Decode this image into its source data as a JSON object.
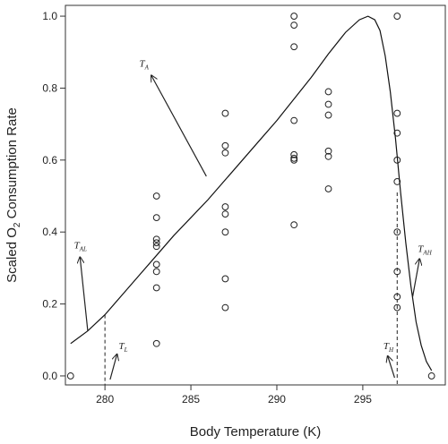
{
  "chart_data": {
    "type": "scatter",
    "xlabel": "Body Temperature (K)",
    "ylabel_main": "Scaled O",
    "ylabel_sub": "2",
    "ylabel_rest": " Consumption Rate",
    "xlim": [
      277.7,
      299.8
    ],
    "ylim": [
      -0.025,
      1.03
    ],
    "x_ticks": [
      280,
      285,
      290,
      295
    ],
    "x_tick_labels": [
      "280",
      "285",
      "290",
      "295"
    ],
    "y_ticks": [
      0.0,
      0.2,
      0.4,
      0.6,
      0.8,
      1.0
    ],
    "y_tick_labels": [
      "0.0",
      "0.2",
      "0.4",
      "0.6",
      "0.8",
      "1.0"
    ],
    "grid": false,
    "points": [
      {
        "x": 278,
        "y": 0.0
      },
      {
        "x": 283,
        "y": 0.5
      },
      {
        "x": 283,
        "y": 0.44
      },
      {
        "x": 283,
        "y": 0.38
      },
      {
        "x": 283,
        "y": 0.37
      },
      {
        "x": 283,
        "y": 0.36
      },
      {
        "x": 283,
        "y": 0.31
      },
      {
        "x": 283,
        "y": 0.29
      },
      {
        "x": 283,
        "y": 0.245
      },
      {
        "x": 283,
        "y": 0.09
      },
      {
        "x": 287,
        "y": 0.73
      },
      {
        "x": 287,
        "y": 0.64
      },
      {
        "x": 287,
        "y": 0.62
      },
      {
        "x": 287,
        "y": 0.47
      },
      {
        "x": 287,
        "y": 0.45
      },
      {
        "x": 287,
        "y": 0.4
      },
      {
        "x": 287,
        "y": 0.27
      },
      {
        "x": 287,
        "y": 0.19
      },
      {
        "x": 291,
        "y": 1.0
      },
      {
        "x": 291,
        "y": 0.975
      },
      {
        "x": 291,
        "y": 0.915
      },
      {
        "x": 291,
        "y": 0.71
      },
      {
        "x": 291,
        "y": 0.615
      },
      {
        "x": 291,
        "y": 0.605
      },
      {
        "x": 291,
        "y": 0.6
      },
      {
        "x": 291,
        "y": 0.42
      },
      {
        "x": 293,
        "y": 0.79
      },
      {
        "x": 293,
        "y": 0.755
      },
      {
        "x": 293,
        "y": 0.725
      },
      {
        "x": 293,
        "y": 0.625
      },
      {
        "x": 293,
        "y": 0.61
      },
      {
        "x": 293,
        "y": 0.52
      },
      {
        "x": 297,
        "y": 1.0
      },
      {
        "x": 297,
        "y": 0.73
      },
      {
        "x": 297,
        "y": 0.675
      },
      {
        "x": 297,
        "y": 0.6
      },
      {
        "x": 297,
        "y": 0.54
      },
      {
        "x": 297,
        "y": 0.4
      },
      {
        "x": 297,
        "y": 0.29
      },
      {
        "x": 297,
        "y": 0.22
      },
      {
        "x": 297,
        "y": 0.19
      },
      {
        "x": 299,
        "y": 0.0
      }
    ],
    "curve": [
      {
        "x": 278.0,
        "y": 0.09
      },
      {
        "x": 279.0,
        "y": 0.125
      },
      {
        "x": 280.0,
        "y": 0.17
      },
      {
        "x": 281.0,
        "y": 0.225
      },
      {
        "x": 282.0,
        "y": 0.28
      },
      {
        "x": 283.0,
        "y": 0.335
      },
      {
        "x": 284.0,
        "y": 0.39
      },
      {
        "x": 285.0,
        "y": 0.44
      },
      {
        "x": 286.0,
        "y": 0.49
      },
      {
        "x": 287.0,
        "y": 0.545
      },
      {
        "x": 288.0,
        "y": 0.6
      },
      {
        "x": 289.0,
        "y": 0.655
      },
      {
        "x": 290.0,
        "y": 0.71
      },
      {
        "x": 291.0,
        "y": 0.77
      },
      {
        "x": 292.0,
        "y": 0.83
      },
      {
        "x": 293.0,
        "y": 0.895
      },
      {
        "x": 294.0,
        "y": 0.955
      },
      {
        "x": 294.8,
        "y": 0.99
      },
      {
        "x": 295.3,
        "y": 1.0
      },
      {
        "x": 295.7,
        "y": 0.99
      },
      {
        "x": 296.0,
        "y": 0.96
      },
      {
        "x": 296.3,
        "y": 0.89
      },
      {
        "x": 296.6,
        "y": 0.79
      },
      {
        "x": 296.9,
        "y": 0.66
      },
      {
        "x": 297.2,
        "y": 0.51
      },
      {
        "x": 297.5,
        "y": 0.37
      },
      {
        "x": 297.8,
        "y": 0.25
      },
      {
        "x": 298.1,
        "y": 0.15
      },
      {
        "x": 298.4,
        "y": 0.085
      },
      {
        "x": 298.7,
        "y": 0.04
      },
      {
        "x": 299.0,
        "y": 0.015
      }
    ],
    "vlines": [
      {
        "name": "TL",
        "x": 280,
        "y_top": 0.17
      },
      {
        "name": "TH",
        "x": 297,
        "y_top": 0.51
      }
    ],
    "annotations": [
      {
        "id": "ta",
        "label": "T",
        "sub": "A",
        "tx": 282.0,
        "ty": 0.86,
        "arrow_from": [
          285.9,
          0.555
        ],
        "arrow_to": [
          282.7,
          0.835
        ]
      },
      {
        "id": "tal",
        "label": "T",
        "sub": "AL",
        "tx": 278.2,
        "ty": 0.355,
        "arrow_from": [
          279.0,
          0.125
        ],
        "arrow_to": [
          278.55,
          0.33
        ]
      },
      {
        "id": "tl",
        "label": "T",
        "sub": "L",
        "tx": 280.8,
        "ty": 0.075,
        "arrow_from": [
          280.3,
          -0.01
        ],
        "arrow_to": [
          280.7,
          0.06
        ]
      },
      {
        "id": "th",
        "label": "T",
        "sub": "H",
        "tx": 296.2,
        "ty": 0.075,
        "arrow_from": [
          296.85,
          -0.005
        ],
        "arrow_to": [
          296.45,
          0.055
        ]
      },
      {
        "id": "tah",
        "label": "T",
        "sub": "AH",
        "tx": 298.2,
        "ty": 0.345,
        "arrow_from": [
          297.9,
          0.22
        ],
        "arrow_to": [
          298.3,
          0.325
        ]
      }
    ]
  }
}
